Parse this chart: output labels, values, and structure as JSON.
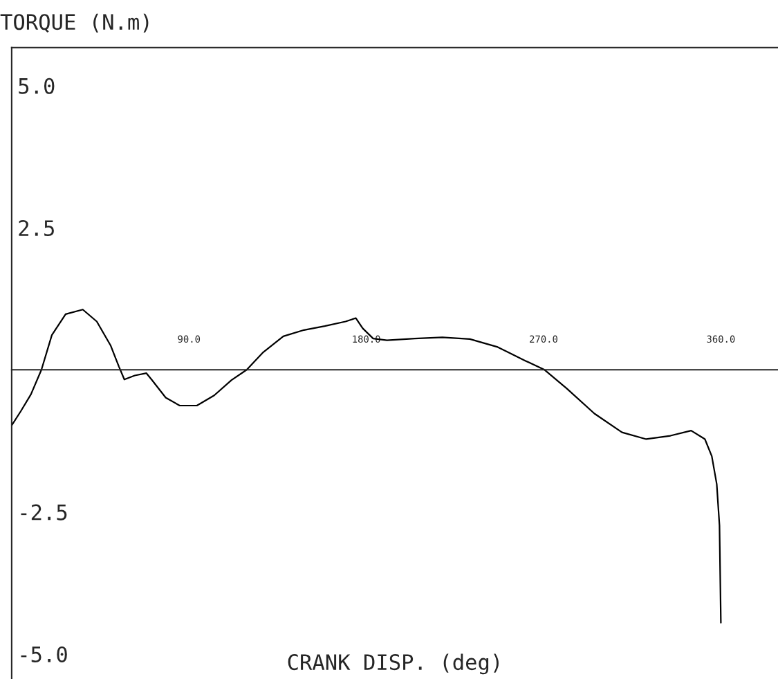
{
  "chart_data": {
    "type": "line",
    "xlabel": "CRANK DISP. (deg)",
    "ylabel": "TORQUE (N.m)",
    "x": [
      0,
      4.6,
      9.8,
      15.1,
      20.4,
      27.4,
      36.1,
      43.2,
      50.2,
      54.4,
      57.2,
      62.5,
      68.4,
      71.2,
      78.2,
      85.3,
      94.0,
      102.8,
      111.6,
      119.3,
      127.4,
      137.9,
      148.4,
      158.9,
      169.5,
      174.7,
      178.2,
      183.5,
      190.5,
      204.6,
      218.6,
      232.6,
      246.7,
      260.7,
      270.5,
      281.8,
      295.8,
      309.8,
      322.1,
      334.4,
      344.9,
      351.9,
      355.4,
      357.9,
      359.3,
      360.0
    ],
    "series": [
      {
        "color": "#000000",
        "values": [
          -0.98,
          -0.73,
          -0.43,
          0,
          0.61,
          0.98,
          1.06,
          0.85,
          0.43,
          0.06,
          -0.17,
          -0.1,
          -0.06,
          -0.18,
          -0.49,
          -0.63,
          -0.63,
          -0.45,
          -0.18,
          0,
          0.3,
          0.59,
          0.7,
          0.77,
          0.85,
          0.91,
          0.73,
          0.55,
          0.52,
          0.55,
          0.57,
          0.54,
          0.4,
          0.16,
          0,
          -0.33,
          -0.77,
          -1.1,
          -1.22,
          -1.16,
          -1.07,
          -1.22,
          -1.52,
          -2.01,
          -2.74,
          -4.45
        ]
      }
    ],
    "xlim": [
      0,
      389
    ],
    "ylim": [
      -5.44,
      5.67
    ],
    "xticks": [
      {
        "value": 90,
        "label": "90.0"
      },
      {
        "value": 180,
        "label": "180.0"
      },
      {
        "value": 270,
        "label": "270.0"
      },
      {
        "value": 360,
        "label": "360.0"
      }
    ],
    "yticks": [
      {
        "value": -5,
        "label": "-5.0"
      },
      {
        "value": -2.5,
        "label": "-2.5"
      },
      {
        "value": 2.5,
        "label": "2.5"
      },
      {
        "value": 5,
        "label": "5.0"
      }
    ],
    "grid": false,
    "legend": false,
    "marker": "none",
    "line_style": "solid"
  }
}
